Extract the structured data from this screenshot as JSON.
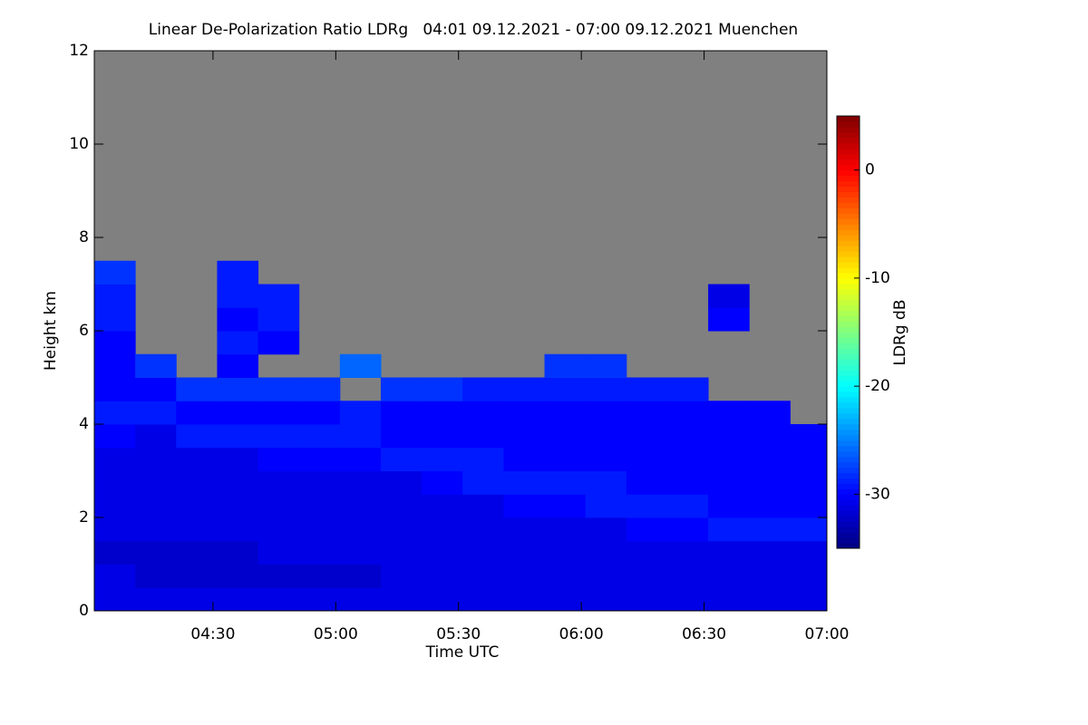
{
  "chart_data": {
    "type": "heatmap",
    "title": "Linear De-Polarization Ratio LDRg   04:01 09.12.2021 - 07:00 09.12.2021 Muenchen",
    "xlabel": "Time UTC",
    "ylabel": "Height km",
    "colorbar_label": "LDRg dB",
    "colormap": "jet",
    "missing_color": "#808080",
    "x": [
      246,
      256,
      266,
      276,
      286,
      296,
      306,
      316,
      326,
      336,
      346,
      356,
      366,
      376,
      386,
      396,
      406,
      416
    ],
    "y": [
      0.25,
      0.75,
      1.25,
      1.75,
      2.25,
      2.75,
      3.25,
      3.75,
      4.25,
      4.75,
      5.25,
      5.75,
      6.25,
      6.75,
      7.25,
      7.75
    ],
    "z": [
      [
        -31,
        -31,
        -32,
        -31,
        -31,
        -31,
        -31,
        -30,
        -29,
        -30,
        -30,
        -30,
        -29,
        -29,
        -28,
        null
      ],
      [
        -31,
        -32,
        -32,
        -31,
        -31,
        -31,
        -31,
        -31,
        -29,
        -30,
        -28,
        null,
        null,
        null,
        null,
        null
      ],
      [
        -31,
        -32,
        -32,
        -31,
        -31,
        -31,
        -31,
        -29,
        -30,
        -28,
        null,
        null,
        null,
        null,
        null,
        null
      ],
      [
        -31,
        -32,
        -32,
        -31,
        -31,
        -31,
        -31,
        -29,
        -30,
        -28,
        -30,
        -29,
        -30,
        -29,
        -29,
        null
      ],
      [
        -31,
        -32,
        -31,
        -31,
        -31,
        -31,
        -30,
        -29,
        -30,
        -28,
        null,
        -30,
        -29,
        -29,
        null,
        null
      ],
      [
        -31,
        -32,
        -31,
        -31,
        -31,
        -31,
        -30,
        -29,
        -30,
        -28,
        null,
        null,
        null,
        null,
        null,
        null
      ],
      [
        -31,
        -32,
        -31,
        -31,
        -31,
        -31,
        -30,
        -29,
        -29,
        null,
        -26,
        null,
        null,
        null,
        null,
        null
      ],
      [
        -31,
        -31,
        -31,
        -31,
        -31,
        -31,
        -29,
        -30,
        -30,
        -28,
        null,
        null,
        null,
        null,
        null,
        null
      ],
      [
        -31,
        -31,
        -31,
        -31,
        -31,
        -30,
        -29,
        -30,
        -30,
        -28,
        null,
        null,
        null,
        null,
        null,
        null
      ],
      [
        -31,
        -31,
        -31,
        -31,
        -31,
        -29,
        -29,
        -30,
        -30,
        -29,
        null,
        null,
        null,
        null,
        null,
        null
      ],
      [
        -31,
        -31,
        -31,
        -31,
        -30,
        -29,
        -30,
        -30,
        -30,
        -29,
        null,
        null,
        null,
        null,
        null,
        null
      ],
      [
        -31,
        -31,
        -31,
        -31,
        -30,
        -29,
        -30,
        -30,
        -30,
        -29,
        -28,
        null,
        null,
        null,
        null,
        null
      ],
      [
        -31,
        -31,
        -31,
        -31,
        -29,
        -29,
        -30,
        -30,
        -30,
        -29,
        -28,
        null,
        null,
        null,
        null,
        null
      ],
      [
        -31,
        -31,
        -31,
        -30,
        -29,
        -30,
        -30,
        -30,
        -30,
        -29,
        null,
        null,
        null,
        null,
        null,
        null
      ],
      [
        -31,
        -31,
        -31,
        -30,
        -29,
        -30,
        -30,
        -30,
        -30,
        -29,
        null,
        null,
        null,
        null,
        null,
        null
      ],
      [
        -31,
        -31,
        -31,
        -29,
        -30,
        -30,
        -30,
        -30,
        -30,
        null,
        null,
        null,
        -30,
        -31,
        null,
        null
      ],
      [
        -31,
        -31,
        -31,
        -29,
        -30,
        -30,
        -30,
        -30,
        -30,
        null,
        null,
        null,
        null,
        null,
        null,
        null
      ],
      [
        -31,
        -31,
        -31,
        -29,
        -30,
        -30,
        -30,
        -30,
        null,
        null,
        null,
        null,
        null,
        null,
        null,
        null
      ]
    ],
    "xlim": [
      241,
      420
    ],
    "xticks": [
      {
        "value": 270,
        "label": "04:30"
      },
      {
        "value": 300,
        "label": "05:00"
      },
      {
        "value": 330,
        "label": "05:30"
      },
      {
        "value": 360,
        "label": "06:00"
      },
      {
        "value": 390,
        "label": "06:30"
      },
      {
        "value": 420,
        "label": "07:00"
      }
    ],
    "ylim": [
      0,
      12
    ],
    "yticks": [
      0,
      2,
      4,
      6,
      8,
      10,
      12
    ],
    "zlim": [
      -35,
      5
    ],
    "zticks": [
      0,
      -10,
      -20,
      -30
    ]
  }
}
